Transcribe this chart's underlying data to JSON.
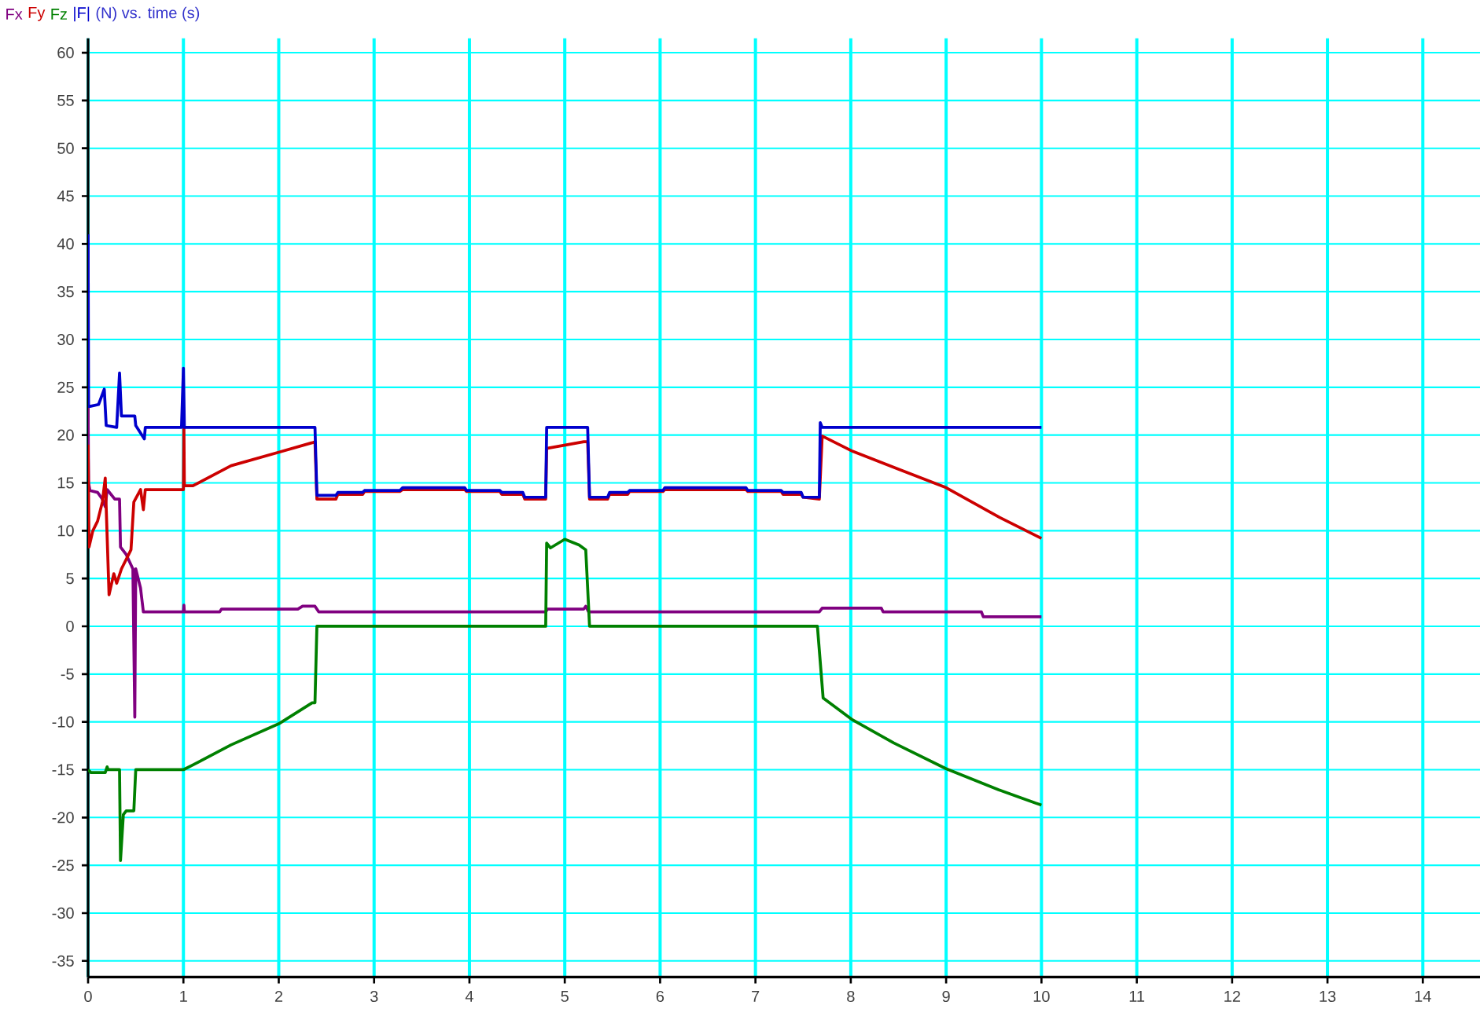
{
  "chart_data": {
    "type": "line",
    "title": "(N) vs. time (s)",
    "legend": "top left",
    "grid": true,
    "xlim": [
      0,
      14.6
    ],
    "ylim": [
      -36.7,
      61.5
    ],
    "xticks": [
      0,
      1,
      2,
      3,
      4,
      5,
      6,
      7,
      8,
      9,
      10,
      11,
      12,
      13,
      14
    ],
    "yticks": [
      -35,
      -30,
      -25,
      -20,
      -15,
      -10,
      -5,
      0,
      5,
      10,
      15,
      20,
      25,
      30,
      35,
      40,
      45,
      50,
      55,
      60
    ],
    "series": [
      {
        "name": "Fx",
        "color": "#800080",
        "x": [
          0,
          0.005,
          0.02,
          0.1,
          0.15,
          0.18,
          0.2,
          0.28,
          0.33,
          0.34,
          0.4,
          0.47,
          0.49,
          0.5,
          0.55,
          0.58,
          1.0,
          1.005,
          1.01,
          1.38,
          1.4,
          2.2,
          2.25,
          2.38,
          2.42,
          4.8,
          4.82,
          5.2,
          5.22,
          5.25,
          7.67,
          7.7,
          8.32,
          8.34,
          9.37,
          9.39,
          10.0
        ],
        "values": [
          23,
          15,
          14.2,
          14,
          13.3,
          12.5,
          14.3,
          13.3,
          13.3,
          8.3,
          7.5,
          6,
          -9.5,
          6,
          4,
          1.5,
          1.5,
          2.2,
          1.5,
          1.5,
          1.8,
          1.8,
          2.1,
          2.1,
          1.5,
          1.5,
          1.8,
          1.8,
          2.1,
          1.5,
          1.5,
          1.9,
          1.9,
          1.5,
          1.5,
          1.0,
          1.0
        ]
      },
      {
        "name": "Fy",
        "color": "#cc0000",
        "x": [
          0,
          0.01,
          0.05,
          0.1,
          0.15,
          0.18,
          0.22,
          0.27,
          0.3,
          0.35,
          0.45,
          0.48,
          0.55,
          0.58,
          0.6,
          1.0,
          1.005,
          1.01,
          1.1,
          1.5,
          2.0,
          2.35,
          2.38,
          2.4,
          2.6,
          2.62,
          2.88,
          2.9,
          3.27,
          3.3,
          3.95,
          3.97,
          4.32,
          4.34,
          4.56,
          4.58,
          4.8,
          4.81,
          5.2,
          5.24,
          5.26,
          5.45,
          5.47,
          5.66,
          5.68,
          6.03,
          6.05,
          6.9,
          6.92,
          7.27,
          7.29,
          7.48,
          7.5,
          7.67,
          7.7,
          8.02,
          8.51,
          9.0,
          9.56,
          10.0
        ],
        "values": [
          19,
          8.3,
          10,
          11,
          13,
          15.5,
          3.3,
          5.5,
          4.5,
          6,
          8,
          13,
          14.3,
          12.2,
          14.3,
          14.3,
          21,
          14.7,
          14.7,
          16.8,
          18.2,
          19.2,
          19.3,
          13.3,
          13.3,
          13.8,
          13.8,
          14.1,
          14.1,
          14.3,
          14.3,
          14.1,
          14.1,
          13.8,
          13.8,
          13.3,
          13.3,
          18.6,
          19.3,
          19.3,
          13.3,
          13.3,
          13.8,
          13.8,
          14.1,
          14.1,
          14.3,
          14.3,
          14.1,
          14.1,
          13.8,
          13.8,
          13.5,
          13.3,
          19.9,
          18.3,
          16.4,
          14.5,
          11.4,
          9.2
        ]
      },
      {
        "name": "Fz",
        "color": "#008000",
        "x": [
          0,
          0.03,
          0.18,
          0.2,
          0.21,
          0.33,
          0.34,
          0.37,
          0.4,
          0.48,
          0.5,
          1.0,
          1.1,
          1.5,
          2.0,
          2.35,
          2.38,
          2.4,
          4.8,
          4.81,
          4.85,
          5.0,
          5.15,
          5.22,
          5.26,
          7.65,
          7.71,
          8.02,
          8.45,
          9.0,
          9.55,
          9.94,
          10.0
        ],
        "values": [
          -15,
          -15.3,
          -15.3,
          -14.7,
          -15,
          -15,
          -24.5,
          -19.7,
          -19.3,
          -19.3,
          -15,
          -15,
          -14.5,
          -12.4,
          -10.2,
          -8,
          -8,
          0,
          0,
          8.7,
          8.2,
          9.1,
          8.5,
          8,
          0,
          0,
          -7.5,
          -9.8,
          -12.2,
          -14.9,
          -17.1,
          -18.5,
          -18.7
        ]
      },
      {
        "name": "|F|",
        "color": "#0000cc",
        "x": [
          0,
          0.005,
          0.02,
          0.11,
          0.17,
          0.19,
          0.3,
          0.33,
          0.35,
          0.49,
          0.5,
          0.59,
          0.6,
          0.98,
          1.0,
          1.01,
          2.38,
          2.4,
          2.6,
          2.62,
          2.88,
          2.9,
          3.27,
          3.3,
          3.95,
          3.97,
          4.32,
          4.34,
          4.56,
          4.58,
          4.8,
          4.81,
          5.24,
          5.26,
          5.45,
          5.47,
          5.66,
          5.68,
          6.03,
          6.05,
          6.9,
          6.92,
          7.27,
          7.29,
          7.48,
          7.5,
          7.67,
          7.68,
          7.7,
          10.0
        ],
        "values": [
          41,
          23,
          23,
          23.2,
          24.8,
          21,
          20.8,
          26.5,
          22,
          22,
          21,
          19.6,
          20.8,
          20.8,
          27,
          20.8,
          20.8,
          13.7,
          13.7,
          14,
          14,
          14.2,
          14.2,
          14.5,
          14.5,
          14.2,
          14.2,
          14,
          14,
          13.5,
          13.5,
          20.8,
          20.8,
          13.5,
          13.5,
          14,
          14,
          14.2,
          14.2,
          14.5,
          14.5,
          14.2,
          14.2,
          14,
          14,
          13.5,
          13.5,
          21.3,
          20.8,
          20.8
        ]
      }
    ]
  }
}
